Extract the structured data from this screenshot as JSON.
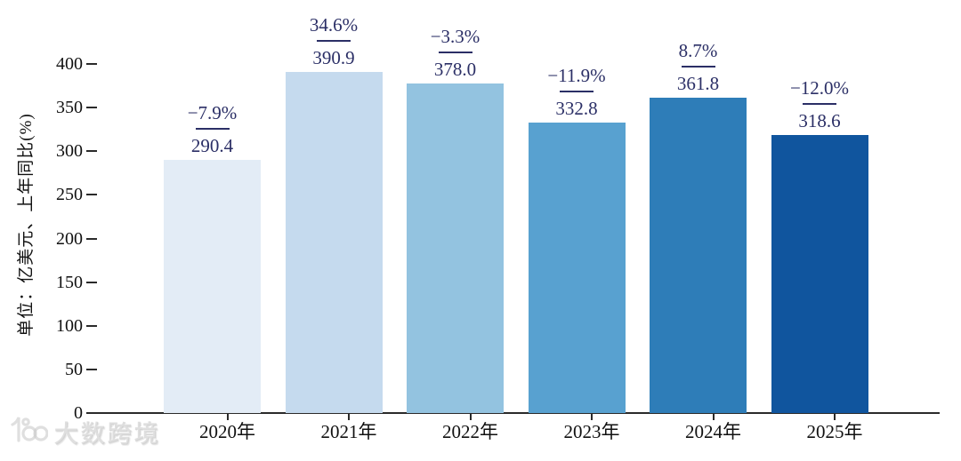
{
  "chart_data": {
    "type": "bar",
    "title": "",
    "ylabel": "单位：亿美元、上年同比(%)",
    "categories": [
      "2020年",
      "2021年",
      "2022年",
      "2023年",
      "2024年",
      "2025年"
    ],
    "values": [
      290.4,
      390.9,
      378.0,
      332.8,
      361.8,
      318.6
    ],
    "value_labels": [
      "290.4",
      "390.9",
      "378.0",
      "332.8",
      "361.8",
      "318.6"
    ],
    "growth_labels": [
      "−7.9%",
      "34.6%",
      "−3.3%",
      "−11.9%",
      "8.7%",
      "−12.0%"
    ],
    "bar_colors": [
      "#e3ecf6",
      "#c5daee",
      "#93c3e0",
      "#58a1d0",
      "#2e7db8",
      "#10559e"
    ],
    "yticks": [
      0,
      50,
      100,
      150,
      200,
      250,
      300,
      350,
      400
    ],
    "ylim": [
      0,
      448
    ],
    "grid": false,
    "legend_position": "none",
    "annotation_color": "#2b2f66",
    "axis_color": "#2a2a2a"
  },
  "watermark": {
    "logo": "10100-logo",
    "text": "大数跨境"
  }
}
